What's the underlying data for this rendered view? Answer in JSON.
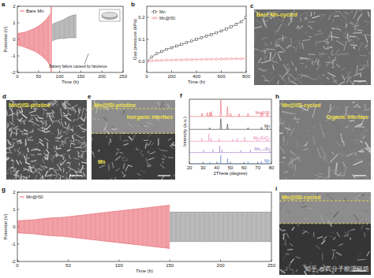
{
  "chart_data": [
    {
      "panel": "a",
      "type": "band",
      "title": "Bare Mn",
      "x_label": "Time (h)",
      "y_label": "Potential (V)",
      "xlim": [
        0,
        250
      ],
      "xticks": [
        0,
        50,
        100,
        150,
        200,
        250
      ],
      "ylim": [
        -2,
        2
      ],
      "yticks": [
        -2,
        -1,
        0,
        1,
        2
      ],
      "series": [
        {
          "color": "#e8616b",
          "x": [
            0,
            10,
            20,
            30,
            40,
            50,
            60,
            70,
            78
          ],
          "high": [
            0.35,
            0.4,
            0.45,
            0.55,
            0.65,
            0.8,
            1.0,
            1.25,
            1.55
          ],
          "low": [
            -0.35,
            -0.4,
            -0.5,
            -0.6,
            -0.7,
            -0.85,
            -1.05,
            -1.3,
            -1.6
          ]
        },
        {
          "color": "#8a8a8a",
          "x": [
            82,
            90,
            100,
            110,
            120,
            130,
            140
          ],
          "high": [
            0.9,
            1.0,
            1.1,
            1.2,
            1.35,
            1.45,
            1.5
          ],
          "low": [
            -0.1,
            0,
            0.05,
            0.05,
            0.1,
            0.1,
            0.1
          ]
        }
      ],
      "vline": {
        "x": 80,
        "color": "#e8616b"
      },
      "annotations": [
        "Battery failure caused by fatulence"
      ]
    },
    {
      "panel": "b",
      "type": "line",
      "x_label": "Time (h)",
      "y_label": "Gas pressure (kPa)",
      "xlim": [
        0,
        800
      ],
      "xticks": [
        0,
        200,
        400,
        600,
        800
      ],
      "ylim": [
        -0.05,
        0.25
      ],
      "yticks": [
        {
          "value": 0,
          "label": "0.0"
        },
        {
          "value": 0.1,
          "label": "0.1"
        },
        {
          "value": 0.2,
          "label": "0.2"
        }
      ],
      "legend": "upper left",
      "series": [
        {
          "name": "Mn",
          "color": "#333333",
          "marker": "square",
          "x": [
            0,
            40,
            80,
            120,
            160,
            200,
            240,
            280,
            320,
            360,
            400,
            440,
            480,
            520,
            560,
            600,
            640,
            680,
            720,
            760,
            800
          ],
          "values": [
            0,
            0.02,
            0.035,
            0.045,
            0.055,
            0.062,
            0.07,
            0.077,
            0.085,
            0.092,
            0.1,
            0.107,
            0.115,
            0.122,
            0.13,
            0.138,
            0.147,
            0.157,
            0.168,
            0.18,
            0.2
          ]
        },
        {
          "name": "Mn@ISI",
          "color": "#e8616b",
          "marker": "circle",
          "x": [
            0,
            40,
            80,
            120,
            160,
            200,
            240,
            280,
            320,
            360,
            400,
            440,
            480,
            520,
            560,
            600,
            640,
            680,
            720,
            760,
            800
          ],
          "values": [
            0,
            0.003,
            0.004,
            0.005,
            0.006,
            0.006,
            0.007,
            0.007,
            0.008,
            0.008,
            0.009,
            0.009,
            0.01,
            0.01,
            0.01,
            0.011,
            0.011,
            0.012,
            0.012,
            0.012,
            0.013
          ]
        }
      ]
    },
    {
      "panel": "f",
      "type": "stick",
      "x_label": "2Theta (degree)",
      "y_label": "Intensity (a.u.)",
      "xlim": [
        20,
        80
      ],
      "xticks": [
        20,
        30,
        40,
        50,
        60,
        70,
        80
      ],
      "ylim": [
        0,
        6
      ],
      "tick_labels": "x",
      "series": [
        {
          "name": "Mn@ISI",
          "type": "line",
          "color": "#e8616b",
          "baseline": 4.4,
          "x": [
            29.2,
            33.1,
            34.9,
            36.1,
            43.0,
            47.9,
            50.2,
            56.3,
            62.9,
            72.7,
            77.0
          ],
          "values": [
            0.3,
            0.35,
            0.4,
            0.45,
            1.5,
            0.9,
            0.3,
            0.25,
            0.3,
            0.35,
            0.3
          ]
        },
        {
          "name": "Mn",
          "type": "line",
          "color": "#333333",
          "baseline": 3.2,
          "x": [
            34.9,
            43.0,
            47.9,
            62.9,
            72.7,
            77.0
          ],
          "values": [
            0.15,
            1.0,
            0.5,
            0.15,
            0.2,
            0.15
          ]
        },
        {
          "name": "Mn₂SnO₄",
          "type": "stick",
          "color": "#e87fb0",
          "baseline": 2.1,
          "x": [
            29.1,
            34.3,
            35.9,
            41.7,
            51.7,
            55.1,
            60.4,
            69.5,
            76.7
          ],
          "values": [
            0.3,
            0.7,
            0.3,
            0.25,
            0.2,
            0.3,
            0.4,
            0.15,
            0.15
          ]
        },
        {
          "name": "Mn₁.₇₇Sn",
          "type": "stick",
          "color": "#9b72c9",
          "baseline": 1.05,
          "x": [
            30.4,
            37.3,
            42.2,
            43.8,
            57.6,
            64.6,
            78.6
          ],
          "values": [
            0.25,
            0.3,
            0.6,
            0.3,
            0.2,
            0.25,
            0.15
          ]
        },
        {
          "name": "Mn",
          "type": "stick",
          "color": "#4a7fd0",
          "baseline": 0,
          "x": [
            35.0,
            41.3,
            43.0,
            47.9,
            62.9,
            72.7,
            77.0
          ],
          "values": [
            0.15,
            0.1,
            0.8,
            0.5,
            0.2,
            0.25,
            0.15
          ]
        }
      ]
    },
    {
      "panel": "g",
      "type": "band",
      "title": "Mn@ISI",
      "x_label": "Time (h)",
      "y_label": "Potential (V)",
      "xlim": [
        0,
        250
      ],
      "xticks": [
        0,
        50,
        100,
        150,
        200,
        250
      ],
      "ylim": [
        -2,
        2
      ],
      "yticks": [
        -2,
        -1,
        0,
        1,
        2
      ],
      "series": [
        {
          "color": "#e8616b",
          "x": [
            0,
            15,
            30,
            45,
            60,
            75,
            90,
            105,
            120,
            135,
            150
          ],
          "high": [
            0.35,
            0.4,
            0.5,
            0.55,
            0.65,
            0.75,
            0.85,
            0.95,
            1.05,
            1.15,
            1.25
          ],
          "low": [
            -0.35,
            -0.4,
            -0.5,
            -0.55,
            -0.65,
            -0.75,
            -0.85,
            -0.95,
            -1.05,
            -1.15,
            -1.25
          ]
        },
        {
          "color": "#8a8a8a",
          "x": [
            150,
            175,
            200,
            225,
            250
          ],
          "high": [
            0.85,
            0.85,
            0.85,
            0.85,
            0.85
          ],
          "low": [
            -0.85,
            -0.85,
            -0.85,
            -0.85,
            -0.85
          ]
        }
      ]
    }
  ],
  "images": [
    {
      "letter": "c",
      "label": "Bare Mn-cycled"
    },
    {
      "letter": "d",
      "label": "Mn@ISI-pristine"
    },
    {
      "letter": "e",
      "label": "Mn@ISI-pristine",
      "annotations": [
        "Inorganic interface",
        "Mn"
      ]
    },
    {
      "letter": "h",
      "label": "Mn@ISI-cycled",
      "annotations": [
        "Organic interface"
      ]
    },
    {
      "letter": "i",
      "label": "Mn@ISI-cycled"
    }
  ],
  "watermark": "知乎 @高分子能源链路"
}
